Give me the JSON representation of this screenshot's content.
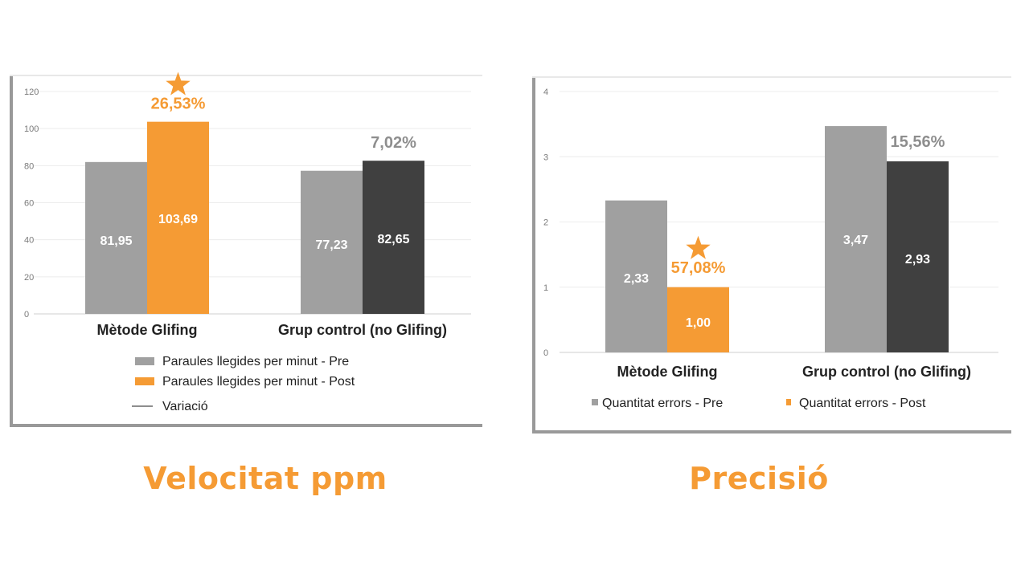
{
  "colors": {
    "pre": "#a0a0a0",
    "post_highlight": "#f59b34",
    "post_dark": "#404040",
    "accent_text": "#f59b34",
    "variation_gray": "#8e8e8e",
    "frame": "#999999"
  },
  "chart_data": [
    {
      "type": "bar",
      "title": "Velocitat ppm",
      "categories": [
        "Mètode Glifing",
        "Grup control (no Glifing)"
      ],
      "ylim": [
        0,
        120
      ],
      "yticks": [
        "0",
        "20",
        "40",
        "60",
        "80",
        "100",
        "120"
      ],
      "grid": true,
      "legend_position": "bottom",
      "series": [
        {
          "name": "Paraules llegides per minut - Pre",
          "values": [
            81.95,
            77.23
          ],
          "labels": [
            "81,95",
            "77,23"
          ]
        },
        {
          "name": "Paraules llegides per minut - Post",
          "values": [
            103.69,
            82.65
          ],
          "labels": [
            "103,69",
            "82,65"
          ]
        }
      ],
      "legend": [
        "Paraules llegides per minut - Pre",
        "Paraules llegides per minut - Post",
        "Variació"
      ],
      "variation": [
        "26,53%",
        "7,02%"
      ],
      "starred_category": "Mètode Glifing"
    },
    {
      "type": "bar",
      "title": "Precisió",
      "categories": [
        "Mètode Glifing",
        "Grup control (no Glifing)"
      ],
      "ylim": [
        0,
        4
      ],
      "yticks": [
        "0",
        "1",
        "2",
        "3",
        "4"
      ],
      "grid": true,
      "legend_position": "bottom",
      "series": [
        {
          "name": "Quantitat errors - Pre",
          "values": [
            2.33,
            3.47
          ],
          "labels": [
            "2,33",
            "3,47"
          ]
        },
        {
          "name": "Quantitat errors - Post",
          "values": [
            1.0,
            2.93
          ],
          "labels": [
            "1,00",
            "2,93"
          ]
        }
      ],
      "legend": [
        "Quantitat errors - Pre",
        "Quantitat errors - Post"
      ],
      "variation": [
        "57,08%",
        "15,56%"
      ],
      "starred_category": "Mètode Glifing"
    }
  ],
  "titles": {
    "left": "Velocitat ppm",
    "right": "Precisió"
  }
}
